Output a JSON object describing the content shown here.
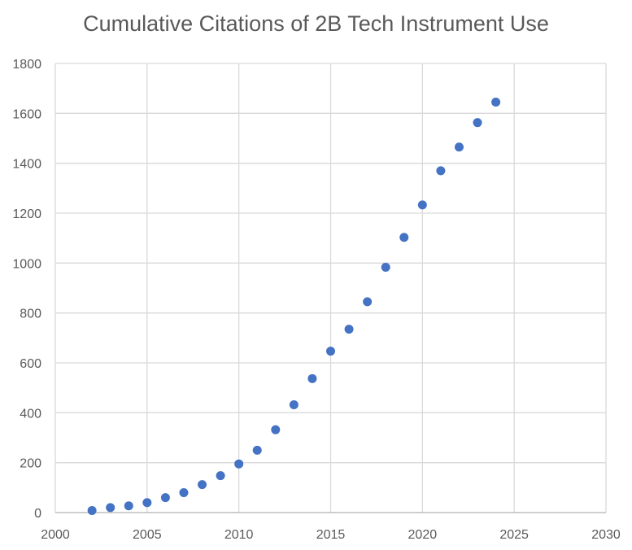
{
  "chart_data": {
    "type": "scatter",
    "title": "Cumulative Citations of 2B Tech Instrument Use",
    "xlabel": "",
    "ylabel": "",
    "xlim": [
      2000,
      2030
    ],
    "ylim": [
      0,
      1800
    ],
    "x_ticks": [
      2000,
      2005,
      2010,
      2015,
      2020,
      2025,
      2030
    ],
    "y_ticks": [
      0,
      200,
      400,
      600,
      800,
      1000,
      1200,
      1400,
      1600,
      1800
    ],
    "grid": true,
    "legend": "none",
    "marker_color": "#4472C4",
    "series": [
      {
        "x": [
          2002,
          2003,
          2004,
          2005,
          2006,
          2007,
          2008,
          2009,
          2010,
          2011,
          2012,
          2013,
          2014,
          2015,
          2016,
          2017,
          2018,
          2019,
          2020,
          2021,
          2022,
          2023,
          2024
        ],
        "y": [
          8,
          20,
          27,
          40,
          60,
          80,
          112,
          148,
          195,
          250,
          332,
          432,
          537,
          647,
          735,
          845,
          983,
          1103,
          1233,
          1370,
          1465,
          1563,
          1645
        ]
      }
    ]
  }
}
